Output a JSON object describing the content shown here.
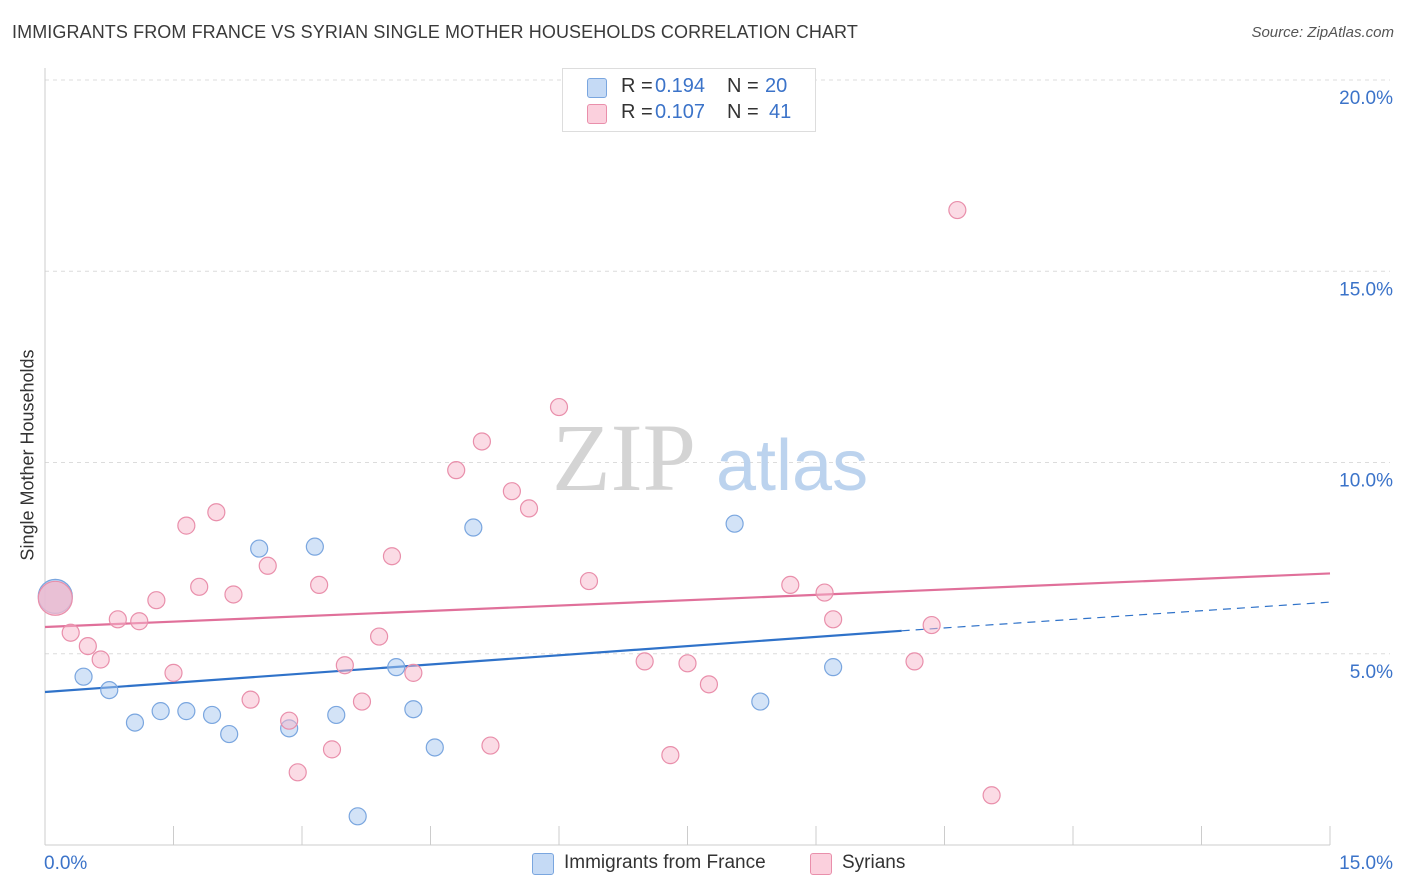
{
  "title": "IMMIGRANTS FROM FRANCE VS SYRIAN SINGLE MOTHER HOUSEHOLDS CORRELATION CHART",
  "source": "Source: ZipAtlas.com",
  "watermark": {
    "zip": "ZIP",
    "atlas": "atlas"
  },
  "legend": {
    "rows": [
      {
        "r_label": "R =",
        "r_value": "0.194",
        "n_label": "N =",
        "n_value": "20",
        "color": "#a8c8f0"
      },
      {
        "r_label": "R =",
        "r_value": "0.107",
        "n_label": "N =",
        "n_value": "41",
        "color": "#f7b8cb"
      }
    ]
  },
  "bottom_legend": {
    "series1": "Immigrants from France",
    "series2": "Syrians"
  },
  "chart_data": {
    "type": "scatter",
    "title": "IMMIGRANTS FROM FRANCE VS SYRIAN SINGLE MOTHER HOUSEHOLDS CORRELATION CHART",
    "xlabel": "",
    "ylabel": "Single Mother Households",
    "xlim": [
      0,
      15
    ],
    "ylim": [
      0,
      20
    ],
    "x_tick_labels": [
      "0.0%",
      "15.0%"
    ],
    "y_ticks": [
      5,
      10,
      15,
      20
    ],
    "y_tick_labels": [
      "5.0%",
      "10.0%",
      "15.0%",
      "20.0%"
    ],
    "grid": "horizontal dashed",
    "legend_position": "top-center",
    "series": [
      {
        "name": "Immigrants from France",
        "color": "#a8c8f0",
        "stroke": "#7aa6df",
        "line_color": "#2f72c9",
        "points": [
          {
            "x": 0.12,
            "y": 6.5,
            "big": true
          },
          {
            "x": 0.45,
            "y": 4.4
          },
          {
            "x": 0.75,
            "y": 4.05
          },
          {
            "x": 1.05,
            "y": 3.2
          },
          {
            "x": 1.35,
            "y": 3.5
          },
          {
            "x": 1.65,
            "y": 3.5
          },
          {
            "x": 1.95,
            "y": 3.4
          },
          {
            "x": 2.15,
            "y": 2.9
          },
          {
            "x": 2.5,
            "y": 7.75
          },
          {
            "x": 2.85,
            "y": 3.05
          },
          {
            "x": 3.15,
            "y": 7.8
          },
          {
            "x": 3.4,
            "y": 3.4
          },
          {
            "x": 3.65,
            "y": 0.75
          },
          {
            "x": 4.1,
            "y": 4.65
          },
          {
            "x": 4.3,
            "y": 3.55
          },
          {
            "x": 4.55,
            "y": 2.55
          },
          {
            "x": 5.0,
            "y": 8.3
          },
          {
            "x": 8.05,
            "y": 8.4
          },
          {
            "x": 8.35,
            "y": 3.75
          },
          {
            "x": 9.2,
            "y": 4.65
          }
        ],
        "trend": {
          "x0": 0,
          "y0": 4.0,
          "x1": 10.0,
          "y1": 5.6,
          "dash_to_x": 15.0,
          "dash_to_y": 6.35
        }
      },
      {
        "name": "Syrians",
        "color": "#f7b8cb",
        "stroke": "#e98fab",
        "line_color": "#e0709a",
        "points": [
          {
            "x": 0.12,
            "y": 6.45,
            "big": true
          },
          {
            "x": 0.3,
            "y": 5.55
          },
          {
            "x": 0.5,
            "y": 5.2
          },
          {
            "x": 0.65,
            "y": 4.85
          },
          {
            "x": 0.85,
            "y": 5.9
          },
          {
            "x": 1.1,
            "y": 5.85
          },
          {
            "x": 1.3,
            "y": 6.4
          },
          {
            "x": 1.5,
            "y": 4.5
          },
          {
            "x": 1.65,
            "y": 8.35
          },
          {
            "x": 1.8,
            "y": 6.75
          },
          {
            "x": 2.0,
            "y": 8.7
          },
          {
            "x": 2.2,
            "y": 6.55
          },
          {
            "x": 2.4,
            "y": 3.8
          },
          {
            "x": 2.6,
            "y": 7.3
          },
          {
            "x": 2.85,
            "y": 3.25
          },
          {
            "x": 2.95,
            "y": 1.9
          },
          {
            "x": 3.2,
            "y": 6.8
          },
          {
            "x": 3.35,
            "y": 2.5
          },
          {
            "x": 3.5,
            "y": 4.7
          },
          {
            "x": 3.7,
            "y": 3.75
          },
          {
            "x": 3.9,
            "y": 5.45
          },
          {
            "x": 4.05,
            "y": 7.55
          },
          {
            "x": 4.3,
            "y": 4.5
          },
          {
            "x": 4.8,
            "y": 9.8
          },
          {
            "x": 5.1,
            "y": 10.55
          },
          {
            "x": 5.2,
            "y": 2.6
          },
          {
            "x": 5.45,
            "y": 9.25
          },
          {
            "x": 5.65,
            "y": 8.8
          },
          {
            "x": 6.0,
            "y": 11.45
          },
          {
            "x": 6.35,
            "y": 6.9
          },
          {
            "x": 7.0,
            "y": 4.8
          },
          {
            "x": 7.3,
            "y": 2.35
          },
          {
            "x": 7.5,
            "y": 4.75
          },
          {
            "x": 7.75,
            "y": 4.2
          },
          {
            "x": 8.7,
            "y": 6.8
          },
          {
            "x": 9.1,
            "y": 6.6
          },
          {
            "x": 9.2,
            "y": 5.9
          },
          {
            "x": 10.15,
            "y": 4.8
          },
          {
            "x": 10.35,
            "y": 5.75
          },
          {
            "x": 10.65,
            "y": 16.6
          },
          {
            "x": 11.05,
            "y": 1.3
          }
        ],
        "trend": {
          "x0": 0,
          "y0": 5.7,
          "x1": 15.0,
          "y1": 7.1
        }
      }
    ]
  }
}
